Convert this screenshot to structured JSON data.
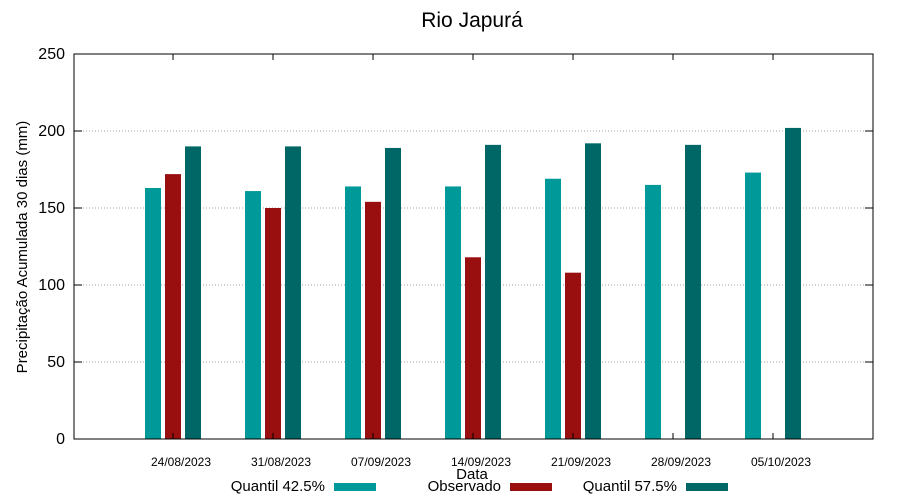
{
  "chart_data": {
    "type": "bar",
    "title": "Rio Japurá",
    "xlabel": "Data",
    "ylabel": "Precipitação Acumulada 30 dias (mm)",
    "ylim": [
      0,
      250
    ],
    "yticks": [
      0,
      50,
      100,
      150,
      200,
      250
    ],
    "grid": "horizontal dotted",
    "legend_position": "bottom",
    "categories": [
      "24/08/2023",
      "31/08/2023",
      "07/09/2023",
      "14/09/2023",
      "21/09/2023",
      "28/09/2023",
      "05/10/2023"
    ],
    "series": [
      {
        "name": "Quantil 42.5%",
        "color": "#009999",
        "values": [
          163,
          161,
          164,
          164,
          169,
          165,
          173
        ]
      },
      {
        "name": "Observado",
        "color": "#990f0f",
        "values": [
          172,
          150,
          154,
          118,
          108,
          null,
          null
        ]
      },
      {
        "name": "Quantil 57.5%",
        "color": "#006666",
        "values": [
          190,
          190,
          189,
          191,
          192,
          191,
          202
        ]
      }
    ]
  }
}
